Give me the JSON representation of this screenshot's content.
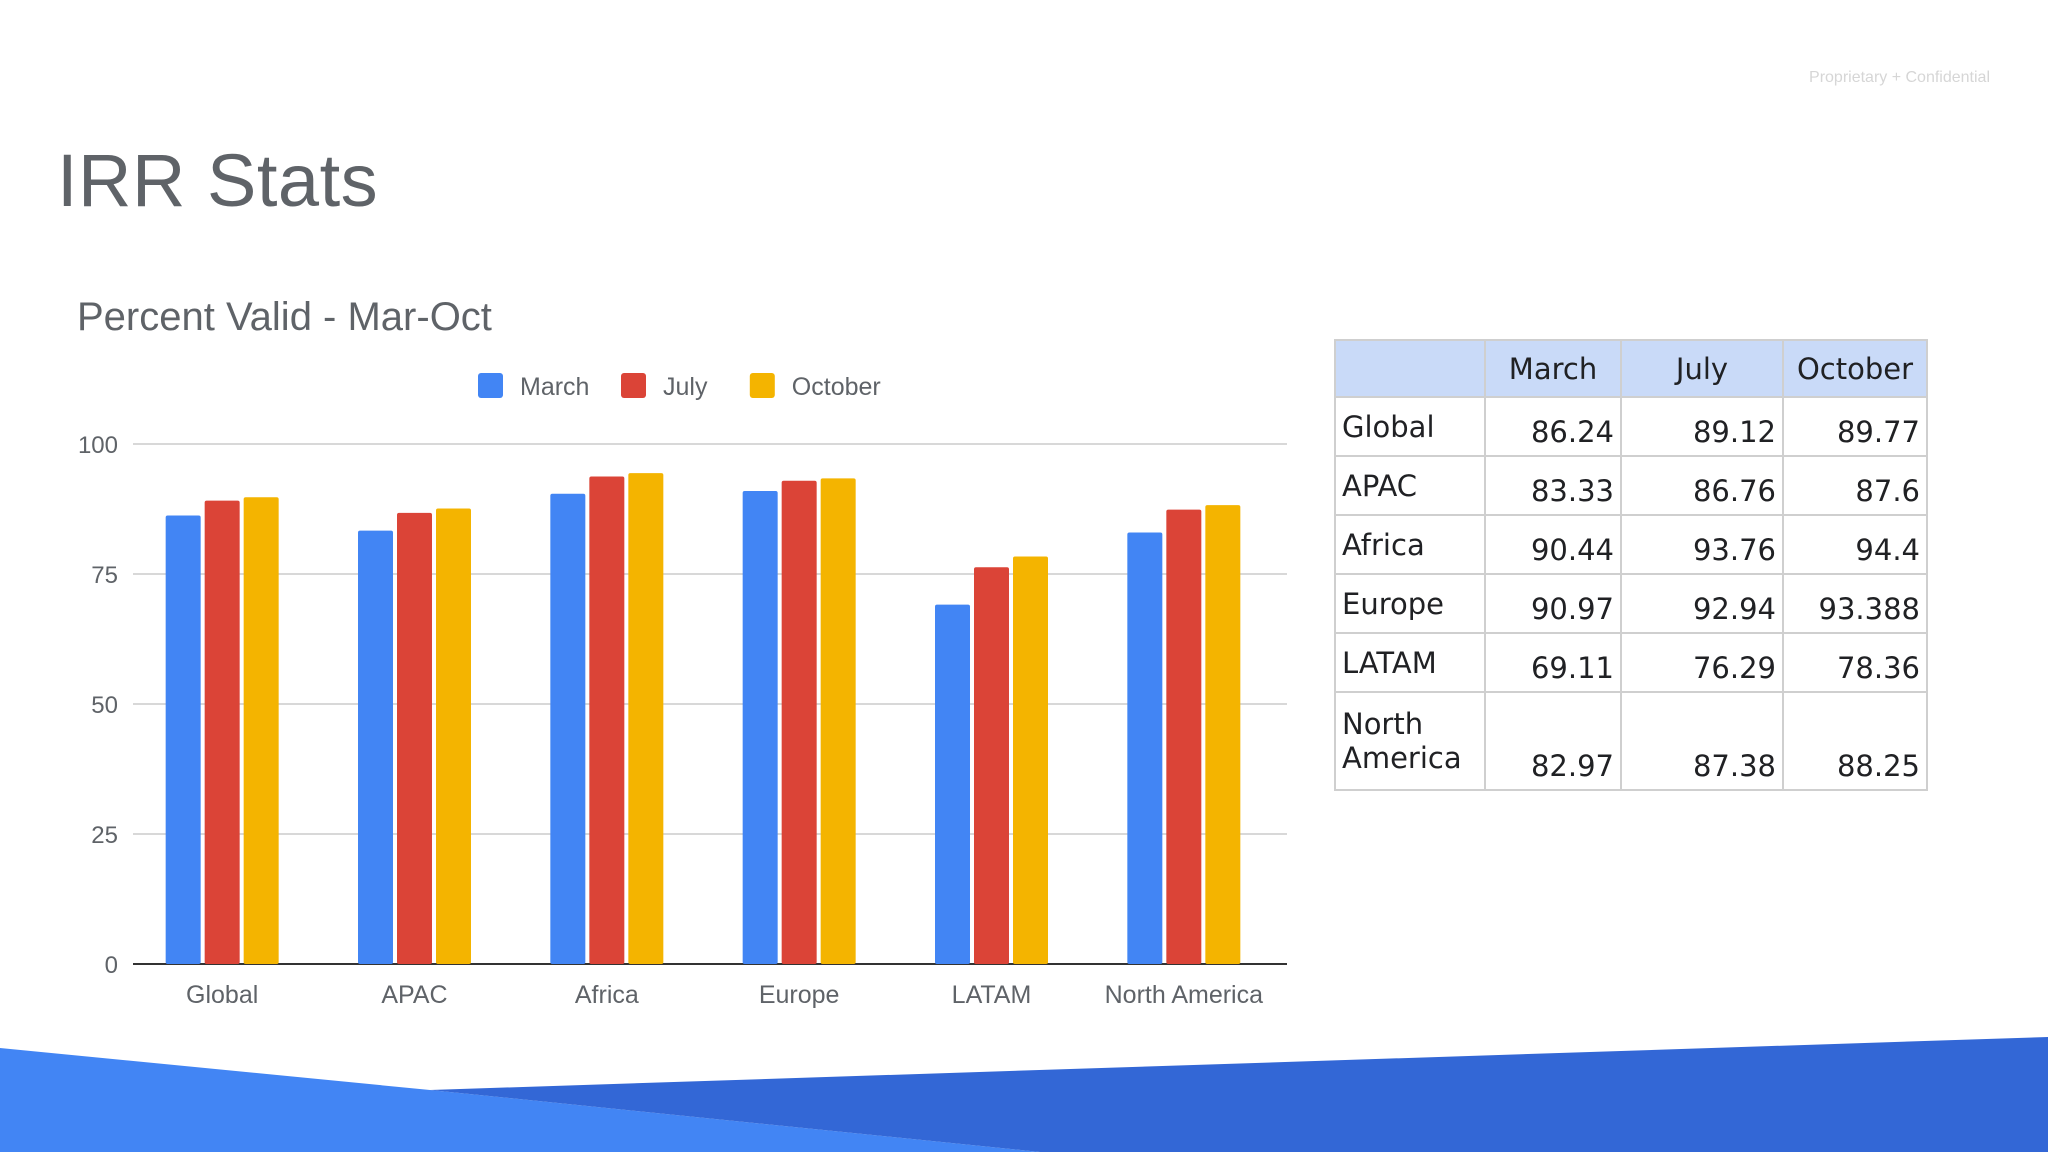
{
  "header": {
    "confidential": "Proprietary + Confidential",
    "title": "IRR Stats"
  },
  "chart_data": {
    "type": "bar",
    "title": "Percent Valid - Mar-Oct",
    "categories": [
      "Global",
      "APAC",
      "Africa",
      "Europe",
      "LATAM",
      "North America"
    ],
    "series": [
      {
        "name": "March",
        "color": "#4285f4",
        "values": [
          86.24,
          83.33,
          90.44,
          90.97,
          69.11,
          82.97
        ]
      },
      {
        "name": "July",
        "color": "#db4437",
        "values": [
          89.12,
          86.76,
          93.76,
          92.94,
          76.29,
          87.38
        ]
      },
      {
        "name": "October",
        "color": "#f4b400",
        "values": [
          89.77,
          87.6,
          94.4,
          93.388,
          78.36,
          88.25
        ]
      }
    ],
    "yticks": [
      0,
      25,
      50,
      75,
      100
    ],
    "ylim": [
      0,
      100
    ],
    "xlabel": "",
    "ylabel": "",
    "grid": true,
    "legend": "top-center"
  },
  "table": {
    "columns": [
      "",
      "March",
      "July",
      "October"
    ],
    "rows": [
      {
        "label": "Global",
        "march": "86.24",
        "july": "89.12",
        "october": "89.77"
      },
      {
        "label": "APAC",
        "march": "83.33",
        "july": "86.76",
        "october": "87.6"
      },
      {
        "label": "Africa",
        "march": "90.44",
        "july": "93.76",
        "october": "94.4"
      },
      {
        "label": "Europe",
        "march": "90.97",
        "july": "92.94",
        "october": "93.388"
      },
      {
        "label": "LATAM",
        "march": "69.11",
        "july": "76.29",
        "october": "78.36"
      },
      {
        "label_line1": "North",
        "label_line2": "America",
        "march": "82.97",
        "july": "87.38",
        "october": "88.25"
      }
    ]
  },
  "colors": {
    "footer_light": "#4285f4",
    "footer_dark": "#3367d6"
  }
}
